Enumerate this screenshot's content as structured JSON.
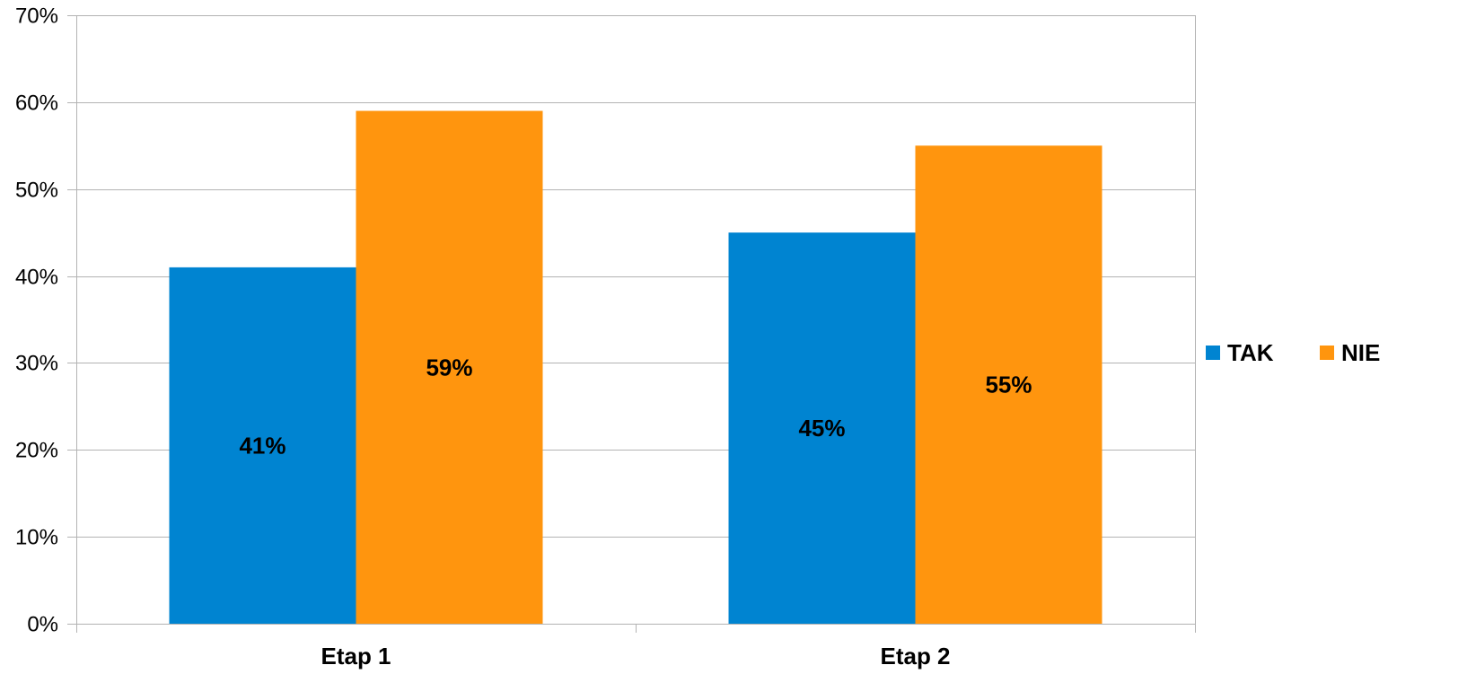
{
  "chart_data": {
    "type": "bar",
    "categories": [
      "Etap 1",
      "Etap 2"
    ],
    "series": [
      {
        "name": "TAK",
        "color": "#0084d1",
        "values": [
          41,
          45
        ],
        "labels": [
          "41%",
          "45%"
        ]
      },
      {
        "name": "NIE",
        "color": "#ff950e",
        "values": [
          59,
          55
        ],
        "labels": [
          "59%",
          "55%"
        ]
      }
    ],
    "ylim": [
      0,
      70
    ],
    "yticks": [
      0,
      10,
      20,
      30,
      40,
      50,
      60,
      70
    ],
    "ytick_labels": [
      "0%",
      "10%",
      "20%",
      "30%",
      "40%",
      "50%",
      "60%",
      "70%"
    ],
    "title": "",
    "xlabel": "",
    "ylabel": "",
    "grid": true,
    "legend_position": "right"
  }
}
